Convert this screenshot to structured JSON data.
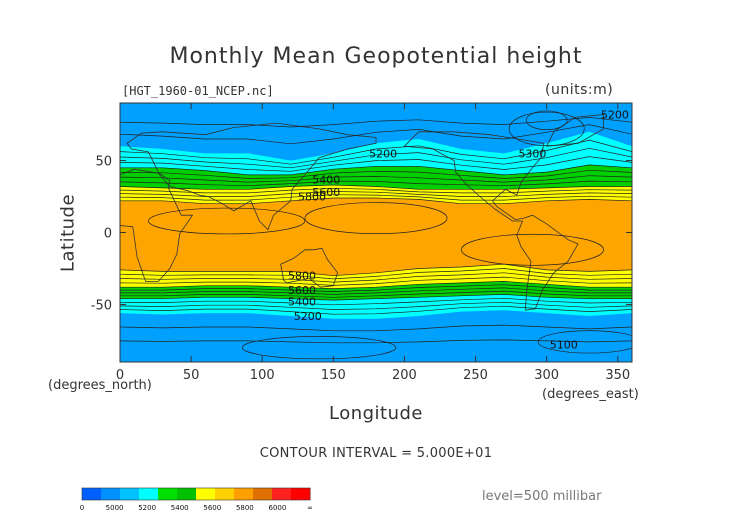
{
  "chart_data": {
    "type": "heatmap",
    "title": "Monthly Mean Geopotential height",
    "file_label": "[HGT_1960-01_NCEP.nc]",
    "units": "(units:m)",
    "xlabel": "Longitude",
    "ylabel": "Latitude",
    "x_unit": "(degrees_north)",
    "y_unit": "(degrees_east)",
    "xlim": [
      0,
      360
    ],
    "ylim": [
      -90,
      90
    ],
    "x_ticks": [
      0,
      50,
      100,
      150,
      200,
      250,
      300,
      350
    ],
    "y_ticks": [
      -50,
      0,
      50
    ],
    "contour_interval": "CONTOUR INTERVAL = 5.000E+01",
    "level": "level=500 millibar",
    "contour_labels": [
      {
        "text": "5200",
        "x": 185,
        "y": 55
      },
      {
        "text": "5300",
        "x": 290,
        "y": 55
      },
      {
        "text": "5200",
        "x": 348,
        "y": 82
      },
      {
        "text": "5400",
        "x": 145,
        "y": 37
      },
      {
        "text": "5600",
        "x": 145,
        "y": 28
      },
      {
        "text": "5800",
        "x": 135,
        "y": 25
      },
      {
        "text": "5800",
        "x": 128,
        "y": -30
      },
      {
        "text": "5600",
        "x": 128,
        "y": -40
      },
      {
        "text": "5400",
        "x": 128,
        "y": -48
      },
      {
        "text": "5200",
        "x": 132,
        "y": -58
      },
      {
        "text": "5100",
        "x": 312,
        "y": -78
      }
    ],
    "bands": [
      {
        "label": "5800+",
        "color": "#ffa500",
        "north": [
          [
            0,
            22
          ],
          [
            30,
            22
          ],
          [
            60,
            20
          ],
          [
            90,
            20
          ],
          [
            120,
            22
          ],
          [
            150,
            24
          ],
          [
            180,
            24
          ],
          [
            210,
            23
          ],
          [
            240,
            20
          ],
          [
            270,
            20
          ],
          [
            300,
            22
          ],
          [
            330,
            23
          ],
          [
            360,
            22
          ]
        ],
        "south": [
          [
            0,
            -26
          ],
          [
            30,
            -27
          ],
          [
            60,
            -27
          ],
          [
            90,
            -27
          ],
          [
            120,
            -27
          ],
          [
            150,
            -30
          ],
          [
            180,
            -28
          ],
          [
            210,
            -25
          ],
          [
            240,
            -24
          ],
          [
            270,
            -22
          ],
          [
            300,
            -26
          ],
          [
            330,
            -27
          ],
          [
            360,
            -26
          ]
        ]
      },
      {
        "label": "5600-5800",
        "color": "#ffff00",
        "north": [
          [
            0,
            32
          ],
          [
            30,
            31
          ],
          [
            60,
            30
          ],
          [
            90,
            30
          ],
          [
            120,
            32
          ],
          [
            150,
            33
          ],
          [
            180,
            32
          ],
          [
            210,
            30
          ],
          [
            240,
            30
          ],
          [
            270,
            30
          ],
          [
            300,
            31
          ],
          [
            330,
            32
          ],
          [
            360,
            32
          ]
        ],
        "south": [
          [
            0,
            -38
          ],
          [
            30,
            -38
          ],
          [
            60,
            -37
          ],
          [
            90,
            -37
          ],
          [
            120,
            -38
          ],
          [
            150,
            -39
          ],
          [
            180,
            -38
          ],
          [
            210,
            -36
          ],
          [
            240,
            -35
          ],
          [
            270,
            -34
          ],
          [
            300,
            -36
          ],
          [
            330,
            -38
          ],
          [
            360,
            -38
          ]
        ]
      },
      {
        "label": "5400-5600",
        "color": "#00d000",
        "north": [
          [
            0,
            45
          ],
          [
            30,
            45
          ],
          [
            60,
            43
          ],
          [
            90,
            40
          ],
          [
            120,
            40
          ],
          [
            150,
            44
          ],
          [
            180,
            46
          ],
          [
            210,
            46
          ],
          [
            240,
            43
          ],
          [
            270,
            40
          ],
          [
            300,
            42
          ],
          [
            330,
            47
          ],
          [
            360,
            45
          ]
        ],
        "south": [
          [
            0,
            -46
          ],
          [
            30,
            -46
          ],
          [
            60,
            -45
          ],
          [
            90,
            -45
          ],
          [
            120,
            -46
          ],
          [
            150,
            -47
          ],
          [
            180,
            -46
          ],
          [
            210,
            -45
          ],
          [
            240,
            -44
          ],
          [
            270,
            -43
          ],
          [
            300,
            -45
          ],
          [
            330,
            -46
          ],
          [
            360,
            -46
          ]
        ]
      },
      {
        "label": "5200-5400",
        "color": "#00ffff",
        "north": [
          [
            0,
            60
          ],
          [
            30,
            58
          ],
          [
            60,
            55
          ],
          [
            90,
            55
          ],
          [
            120,
            50
          ],
          [
            150,
            55
          ],
          [
            180,
            62
          ],
          [
            210,
            65
          ],
          [
            240,
            58
          ],
          [
            270,
            55
          ],
          [
            300,
            62
          ],
          [
            330,
            70
          ],
          [
            360,
            60
          ]
        ],
        "south": [
          [
            0,
            -56
          ],
          [
            30,
            -57
          ],
          [
            60,
            -56
          ],
          [
            90,
            -56
          ],
          [
            120,
            -58
          ],
          [
            150,
            -60
          ],
          [
            180,
            -60
          ],
          [
            210,
            -58
          ],
          [
            240,
            -55
          ],
          [
            270,
            -54
          ],
          [
            300,
            -56
          ],
          [
            330,
            -58
          ],
          [
            360,
            -56
          ]
        ]
      },
      {
        "label": "5000-5200",
        "color": "#00a0ff",
        "north": [
          [
            0,
            90
          ],
          [
            360,
            90
          ]
        ],
        "south": [
          [
            0,
            -90
          ],
          [
            360,
            -90
          ]
        ]
      }
    ],
    "colorbar": {
      "colors": [
        "#0060ff",
        "#0090ff",
        "#00c0ff",
        "#00ffff",
        "#00e000",
        "#00c000",
        "#ffff00",
        "#ffd000",
        "#ffa000",
        "#e07000",
        "#ff2020",
        "#ff0000"
      ],
      "labels": [
        "0",
        "5000",
        "5200",
        "5400",
        "5600",
        "5800",
        "6000",
        "∞"
      ]
    }
  }
}
